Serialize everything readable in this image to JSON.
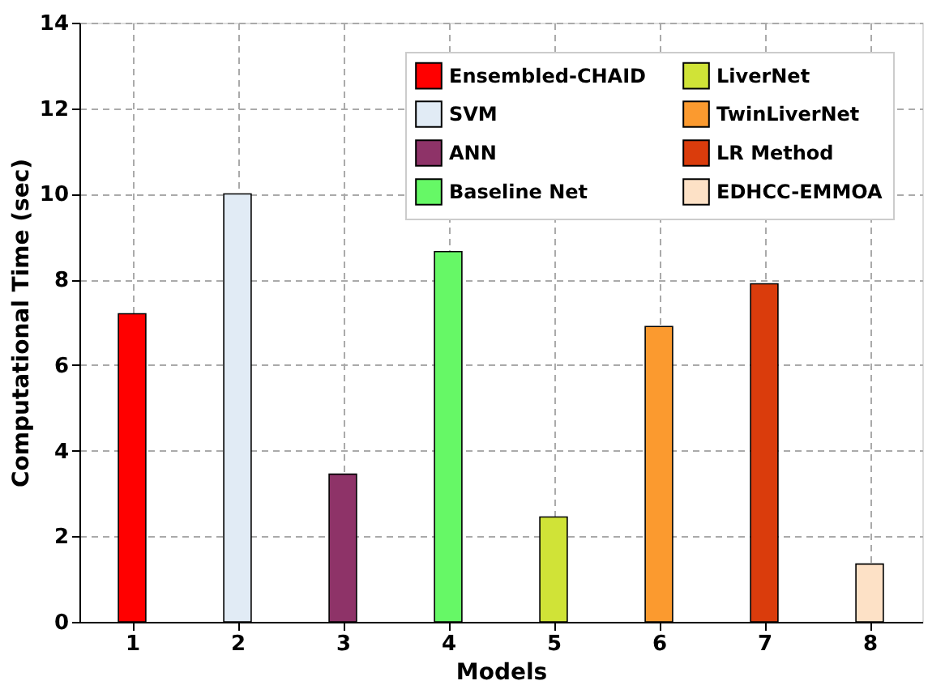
{
  "chart_data": {
    "type": "bar",
    "xlabel": "Models",
    "ylabel": "Computational Time (sec)",
    "categories": [
      "1",
      "2",
      "3",
      "4",
      "5",
      "6",
      "7",
      "8"
    ],
    "series": [
      {
        "name": "Ensembled-CHAID",
        "color": "#ff0000",
        "values": [
          7.2,
          null,
          null,
          null,
          null,
          null,
          null,
          null
        ]
      },
      {
        "name": "SVM",
        "color": "#e1ebf5",
        "values": [
          null,
          10.0,
          null,
          null,
          null,
          null,
          null,
          null
        ]
      },
      {
        "name": "ANN",
        "color": "#8e3368",
        "values": [
          null,
          null,
          3.45,
          null,
          null,
          null,
          null,
          null
        ]
      },
      {
        "name": "Baseline Net",
        "color": "#66f866",
        "values": [
          null,
          null,
          null,
          8.65,
          null,
          null,
          null,
          null
        ]
      },
      {
        "name": "LiverNet",
        "color": "#d0e337",
        "values": [
          null,
          null,
          null,
          null,
          2.45,
          null,
          null,
          null
        ]
      },
      {
        "name": "TwinLiverNet",
        "color": "#fb9a2f",
        "values": [
          null,
          null,
          null,
          null,
          null,
          6.9,
          null,
          null
        ]
      },
      {
        "name": "LR Method",
        "color": "#da3c0c",
        "values": [
          null,
          null,
          null,
          null,
          null,
          null,
          7.9,
          null
        ]
      },
      {
        "name": "EDHCC-EMMOA",
        "color": "#fde1c6",
        "values": [
          null,
          null,
          null,
          null,
          null,
          null,
          null,
          1.35
        ]
      }
    ],
    "ylim": [
      0,
      14
    ],
    "yticks": [
      0,
      2,
      4,
      6,
      8,
      10,
      12,
      14
    ],
    "grid": true,
    "legend": "top right"
  }
}
